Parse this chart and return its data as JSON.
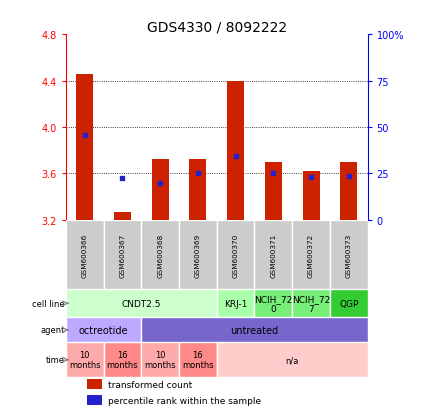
{
  "title": "GDS4330 / 8092222",
  "samples": [
    "GSM600366",
    "GSM600367",
    "GSM600368",
    "GSM600369",
    "GSM600370",
    "GSM600371",
    "GSM600372",
    "GSM600373"
  ],
  "bar_bottoms": [
    3.2,
    3.2,
    3.2,
    3.2,
    3.2,
    3.2,
    3.2,
    3.2
  ],
  "bar_tops": [
    4.46,
    3.27,
    3.72,
    3.72,
    4.4,
    3.7,
    3.62,
    3.7
  ],
  "blue_y": [
    3.93,
    3.56,
    3.52,
    3.6,
    3.75,
    3.6,
    3.57,
    3.58
  ],
  "ylim": [
    3.2,
    4.8
  ],
  "yticks_left": [
    3.2,
    3.6,
    4.0,
    4.4,
    4.8
  ],
  "yticks_right": [
    0,
    25,
    50,
    75,
    100
  ],
  "ytick_labels_right": [
    "0",
    "25",
    "50",
    "75",
    "100%"
  ],
  "bar_color": "#cc2200",
  "blue_color": "#2222cc",
  "cell_blocks": [
    {
      "label": "CNDT2.5",
      "start": 0,
      "end": 3,
      "color": "#ccffcc"
    },
    {
      "label": "KRJ-1",
      "start": 4,
      "end": 4,
      "color": "#aaffaa"
    },
    {
      "label": "NCIH_72\n0",
      "start": 5,
      "end": 5,
      "color": "#77ee77"
    },
    {
      "label": "NCIH_72\n7",
      "start": 6,
      "end": 6,
      "color": "#77ee77"
    },
    {
      "label": "QGP",
      "start": 7,
      "end": 7,
      "color": "#33cc33"
    }
  ],
  "agent_blocks": [
    {
      "label": "octreotide",
      "start": 0,
      "end": 1,
      "color": "#bbaaff"
    },
    {
      "label": "untreated",
      "start": 2,
      "end": 7,
      "color": "#7766cc"
    }
  ],
  "time_blocks": [
    {
      "label": "10\nmonths",
      "start": 0,
      "end": 0,
      "color": "#ffaaaa"
    },
    {
      "label": "16\nmonths",
      "start": 1,
      "end": 1,
      "color": "#ff8888"
    },
    {
      "label": "10\nmonths",
      "start": 2,
      "end": 2,
      "color": "#ffaaaa"
    },
    {
      "label": "16\nmonths",
      "start": 3,
      "end": 3,
      "color": "#ff8888"
    },
    {
      "label": "n/a",
      "start": 4,
      "end": 7,
      "color": "#ffcccc"
    }
  ],
  "legend_red": "transformed count",
  "legend_blue": "percentile rank within the sample",
  "bg_color": "#ffffff",
  "sample_label_color": "#cccccc",
  "left_label_color": "#888888",
  "arrow_color": "#888888"
}
